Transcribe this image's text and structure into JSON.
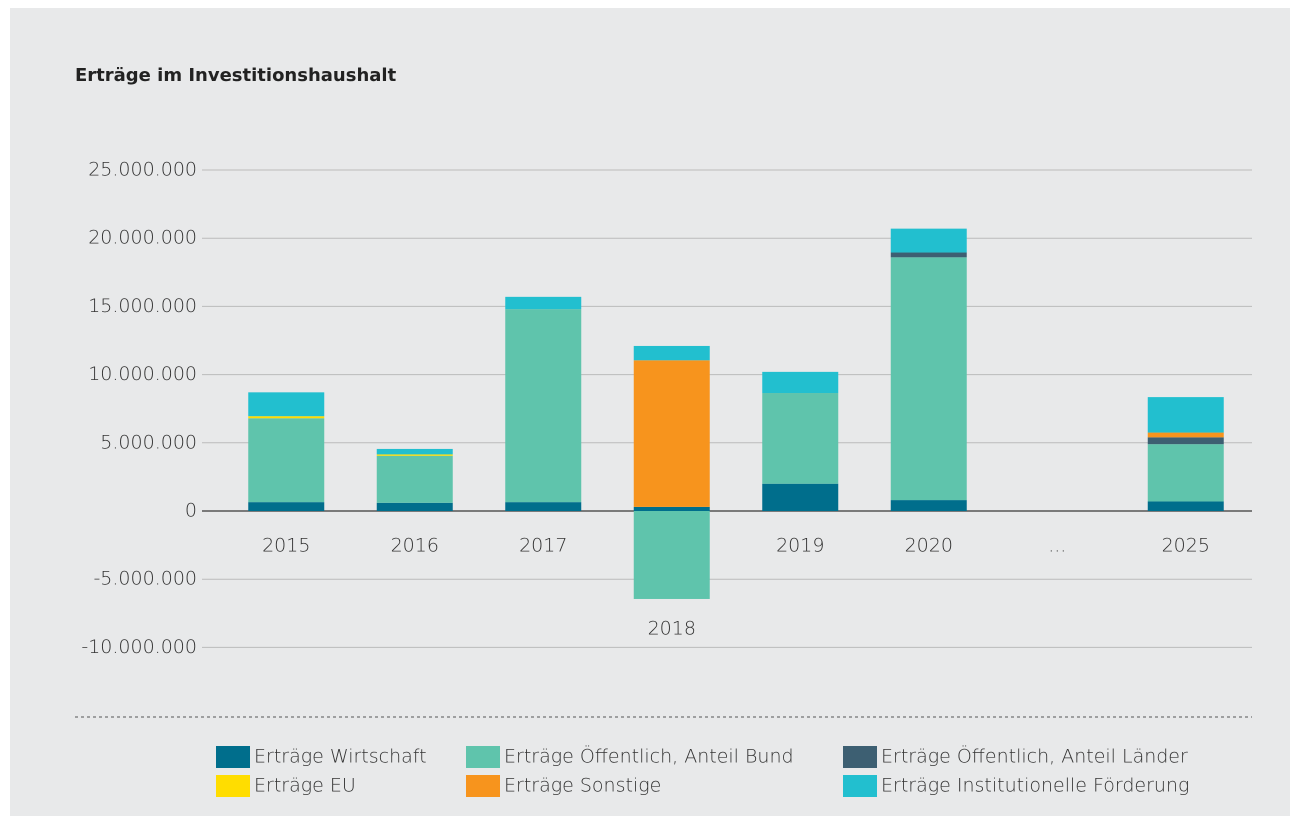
{
  "chart_data": {
    "type": "bar",
    "stacked": true,
    "title": "Erträge im Investitionshaushalt",
    "categories": [
      "2015",
      "2016",
      "2017",
      "2018",
      "2019",
      "2020",
      "...",
      "2025"
    ],
    "series": [
      {
        "name": "Erträge Wirtschaft",
        "color": "#006e8c",
        "values": [
          650000,
          600000,
          650000,
          300000,
          2000000,
          800000,
          null,
          700000
        ]
      },
      {
        "name": "Erträge Öffentlich, Anteil Bund",
        "color": "#5fc4ac",
        "values": [
          6150000,
          3450000,
          14150000,
          -6450000,
          6650000,
          17800000,
          null,
          4200000
        ]
      },
      {
        "name": "Erträge Öffentlich, Anteil Länder",
        "color": "#3d5f72",
        "values": [
          0,
          0,
          0,
          0,
          0,
          350000,
          null,
          500000
        ]
      },
      {
        "name": "Erträge EU",
        "color": "#ffdd00",
        "values": [
          150000,
          100000,
          0,
          0,
          0,
          0,
          null,
          0
        ]
      },
      {
        "name": "Erträge Sonstige",
        "color": "#f7941d",
        "values": [
          0,
          0,
          0,
          10750000,
          0,
          0,
          null,
          350000
        ]
      },
      {
        "name": "Erträge Institutionelle Förderung",
        "color": "#22bfcf",
        "values": [
          1750000,
          400000,
          900000,
          1050000,
          1550000,
          1750000,
          null,
          2600000
        ]
      }
    ],
    "ylim": [
      -12500000,
      25000000
    ],
    "yticks": [
      {
        "value": -10000000,
        "label": "-10.000.000"
      },
      {
        "value": -5000000,
        "label": "-5.000.000"
      },
      0,
      {
        "value": 5000000,
        "label": "5.000.000"
      },
      {
        "value": 10000000,
        "label": "10.000.000"
      },
      {
        "value": 15000000,
        "label": "15.000.000"
      },
      {
        "value": 20000000,
        "label": "20.000.000"
      },
      {
        "value": 25000000,
        "label": "25.000.000"
      }
    ],
    "grid": true
  }
}
